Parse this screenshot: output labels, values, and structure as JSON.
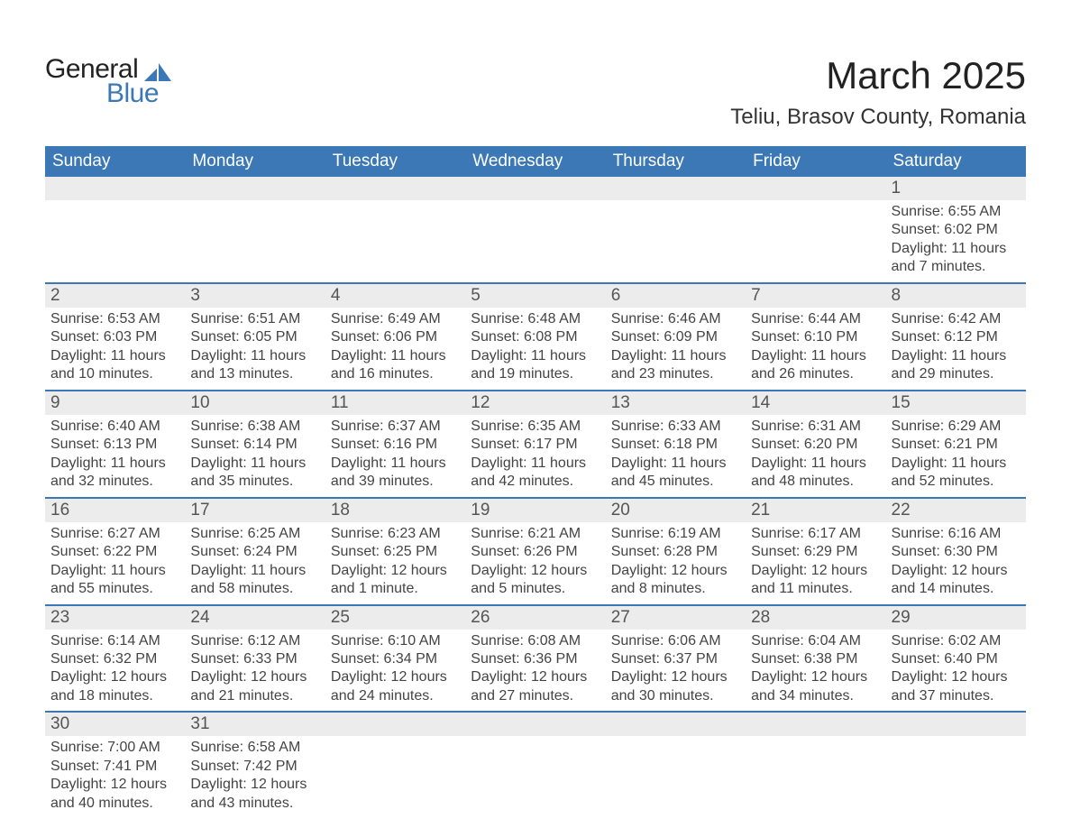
{
  "logo": {
    "top": "General",
    "bottom": "Blue"
  },
  "title": "March 2025",
  "subtitle": "Teliu, Brasov County, Romania",
  "colors": {
    "header_bg": "#3b78b5",
    "header_text": "#ffffff",
    "daynum_bg": "#ececec",
    "daynum_border": "#3b78b5",
    "body_text": "#444",
    "title_text": "#222"
  },
  "day_headers": [
    "Sunday",
    "Monday",
    "Tuesday",
    "Wednesday",
    "Thursday",
    "Friday",
    "Saturday"
  ],
  "weeks": [
    [
      null,
      null,
      null,
      null,
      null,
      null,
      {
        "n": "1",
        "sr": "Sunrise: 6:55 AM",
        "ss": "Sunset: 6:02 PM",
        "dl": "Daylight: 11 hours and 7 minutes."
      }
    ],
    [
      {
        "n": "2",
        "sr": "Sunrise: 6:53 AM",
        "ss": "Sunset: 6:03 PM",
        "dl": "Daylight: 11 hours and 10 minutes."
      },
      {
        "n": "3",
        "sr": "Sunrise: 6:51 AM",
        "ss": "Sunset: 6:05 PM",
        "dl": "Daylight: 11 hours and 13 minutes."
      },
      {
        "n": "4",
        "sr": "Sunrise: 6:49 AM",
        "ss": "Sunset: 6:06 PM",
        "dl": "Daylight: 11 hours and 16 minutes."
      },
      {
        "n": "5",
        "sr": "Sunrise: 6:48 AM",
        "ss": "Sunset: 6:08 PM",
        "dl": "Daylight: 11 hours and 19 minutes."
      },
      {
        "n": "6",
        "sr": "Sunrise: 6:46 AM",
        "ss": "Sunset: 6:09 PM",
        "dl": "Daylight: 11 hours and 23 minutes."
      },
      {
        "n": "7",
        "sr": "Sunrise: 6:44 AM",
        "ss": "Sunset: 6:10 PM",
        "dl": "Daylight: 11 hours and 26 minutes."
      },
      {
        "n": "8",
        "sr": "Sunrise: 6:42 AM",
        "ss": "Sunset: 6:12 PM",
        "dl": "Daylight: 11 hours and 29 minutes."
      }
    ],
    [
      {
        "n": "9",
        "sr": "Sunrise: 6:40 AM",
        "ss": "Sunset: 6:13 PM",
        "dl": "Daylight: 11 hours and 32 minutes."
      },
      {
        "n": "10",
        "sr": "Sunrise: 6:38 AM",
        "ss": "Sunset: 6:14 PM",
        "dl": "Daylight: 11 hours and 35 minutes."
      },
      {
        "n": "11",
        "sr": "Sunrise: 6:37 AM",
        "ss": "Sunset: 6:16 PM",
        "dl": "Daylight: 11 hours and 39 minutes."
      },
      {
        "n": "12",
        "sr": "Sunrise: 6:35 AM",
        "ss": "Sunset: 6:17 PM",
        "dl": "Daylight: 11 hours and 42 minutes."
      },
      {
        "n": "13",
        "sr": "Sunrise: 6:33 AM",
        "ss": "Sunset: 6:18 PM",
        "dl": "Daylight: 11 hours and 45 minutes."
      },
      {
        "n": "14",
        "sr": "Sunrise: 6:31 AM",
        "ss": "Sunset: 6:20 PM",
        "dl": "Daylight: 11 hours and 48 minutes."
      },
      {
        "n": "15",
        "sr": "Sunrise: 6:29 AM",
        "ss": "Sunset: 6:21 PM",
        "dl": "Daylight: 11 hours and 52 minutes."
      }
    ],
    [
      {
        "n": "16",
        "sr": "Sunrise: 6:27 AM",
        "ss": "Sunset: 6:22 PM",
        "dl": "Daylight: 11 hours and 55 minutes."
      },
      {
        "n": "17",
        "sr": "Sunrise: 6:25 AM",
        "ss": "Sunset: 6:24 PM",
        "dl": "Daylight: 11 hours and 58 minutes."
      },
      {
        "n": "18",
        "sr": "Sunrise: 6:23 AM",
        "ss": "Sunset: 6:25 PM",
        "dl": "Daylight: 12 hours and 1 minute."
      },
      {
        "n": "19",
        "sr": "Sunrise: 6:21 AM",
        "ss": "Sunset: 6:26 PM",
        "dl": "Daylight: 12 hours and 5 minutes."
      },
      {
        "n": "20",
        "sr": "Sunrise: 6:19 AM",
        "ss": "Sunset: 6:28 PM",
        "dl": "Daylight: 12 hours and 8 minutes."
      },
      {
        "n": "21",
        "sr": "Sunrise: 6:17 AM",
        "ss": "Sunset: 6:29 PM",
        "dl": "Daylight: 12 hours and 11 minutes."
      },
      {
        "n": "22",
        "sr": "Sunrise: 6:16 AM",
        "ss": "Sunset: 6:30 PM",
        "dl": "Daylight: 12 hours and 14 minutes."
      }
    ],
    [
      {
        "n": "23",
        "sr": "Sunrise: 6:14 AM",
        "ss": "Sunset: 6:32 PM",
        "dl": "Daylight: 12 hours and 18 minutes."
      },
      {
        "n": "24",
        "sr": "Sunrise: 6:12 AM",
        "ss": "Sunset: 6:33 PM",
        "dl": "Daylight: 12 hours and 21 minutes."
      },
      {
        "n": "25",
        "sr": "Sunrise: 6:10 AM",
        "ss": "Sunset: 6:34 PM",
        "dl": "Daylight: 12 hours and 24 minutes."
      },
      {
        "n": "26",
        "sr": "Sunrise: 6:08 AM",
        "ss": "Sunset: 6:36 PM",
        "dl": "Daylight: 12 hours and 27 minutes."
      },
      {
        "n": "27",
        "sr": "Sunrise: 6:06 AM",
        "ss": "Sunset: 6:37 PM",
        "dl": "Daylight: 12 hours and 30 minutes."
      },
      {
        "n": "28",
        "sr": "Sunrise: 6:04 AM",
        "ss": "Sunset: 6:38 PM",
        "dl": "Daylight: 12 hours and 34 minutes."
      },
      {
        "n": "29",
        "sr": "Sunrise: 6:02 AM",
        "ss": "Sunset: 6:40 PM",
        "dl": "Daylight: 12 hours and 37 minutes."
      }
    ],
    [
      {
        "n": "30",
        "sr": "Sunrise: 7:00 AM",
        "ss": "Sunset: 7:41 PM",
        "dl": "Daylight: 12 hours and 40 minutes."
      },
      {
        "n": "31",
        "sr": "Sunrise: 6:58 AM",
        "ss": "Sunset: 7:42 PM",
        "dl": "Daylight: 12 hours and 43 minutes."
      },
      null,
      null,
      null,
      null,
      null
    ]
  ]
}
